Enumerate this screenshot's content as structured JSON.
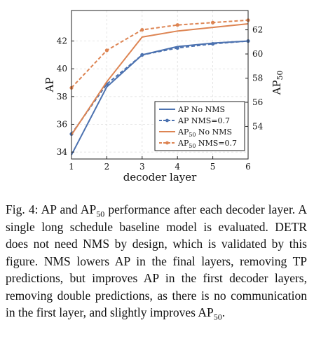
{
  "chart_data": {
    "type": "line",
    "x": [
      1,
      2,
      3,
      4,
      5,
      6
    ],
    "xlabel": "decoder layer",
    "xlim": [
      1,
      6
    ],
    "x_ticks": [
      1,
      2,
      3,
      4,
      5,
      6
    ],
    "ylabel_left": "AP",
    "ylim_left": [
      33.5,
      44.2
    ],
    "y_ticks_left": [
      34,
      36,
      38,
      40,
      42
    ],
    "ylabel_right": "AP50",
    "ylim_right": [
      51.3,
      63.6
    ],
    "y_ticks_right": [
      54,
      56,
      58,
      60,
      62
    ],
    "grid": true,
    "legend_position": "bottom-right",
    "series": [
      {
        "name": "AP No NMS",
        "axis": "left",
        "color": "#4c72b0",
        "dashed": false,
        "markers": false,
        "values": [
          33.8,
          38.7,
          41.0,
          41.6,
          41.85,
          42.0
        ]
      },
      {
        "name": "AP NMS=0.7",
        "axis": "left",
        "color": "#4c72b0",
        "dashed": true,
        "markers": true,
        "values": [
          35.3,
          38.9,
          41.0,
          41.5,
          41.8,
          42.0
        ]
      },
      {
        "name": "AP50 No NMS",
        "axis": "right",
        "color": "#dd8452",
        "dashed": false,
        "markers": false,
        "values": [
          53.3,
          57.7,
          61.4,
          61.9,
          62.2,
          62.5
        ]
      },
      {
        "name": "AP50 NMS=0.7",
        "axis": "right",
        "color": "#dd8452",
        "dashed": true,
        "markers": true,
        "values": [
          57.2,
          60.3,
          62.0,
          62.4,
          62.6,
          62.8
        ]
      }
    ]
  },
  "caption": {
    "fig_label": "Fig. 4:",
    "t1": "AP and AP",
    "t2": " performance after each decoder layer. A single long schedule baseline model is evaluated. DETR does not need NMS by design, which is validated by this figure. NMS lowers AP in the final layers, removing TP predictions, but improves AP in the first decoder layers, removing double predictions, as there is no communication in the first layer, and slightly improves AP",
    "t3": ".",
    "sub": "50"
  }
}
